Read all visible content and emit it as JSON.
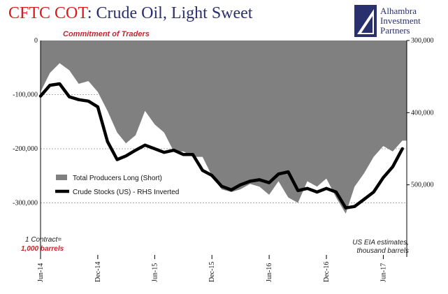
{
  "header": {
    "title_part1": "CFTC COT",
    "title_part2": ": Crude Oil, Light Sweet",
    "subtitle": "Commitment of Traders"
  },
  "logo": {
    "line1": "Alhambra",
    "line2": "Investment",
    "line3": "Partners"
  },
  "notes": {
    "contract": "1 Contract=",
    "barrels": "1,000 barrels",
    "eia_line1": "US EIA estimates,",
    "eia_line2": "thousand barrels"
  },
  "colors": {
    "area": "#808080",
    "line": "#000000",
    "grid": "#aaaaaa"
  },
  "chart_data": {
    "type": "line",
    "x_tick_labels": [
      "Jun-14",
      "Dec-14",
      "Jun-15",
      "Dec-15",
      "Jun-16",
      "Dec-16",
      "Jun-17"
    ],
    "y_left": {
      "ticks": [
        0,
        -100000,
        -200000,
        -300000
      ],
      "tick_labels": [
        "0",
        "-100,000",
        "-200,000",
        "-300,000"
      ],
      "range": [
        -400000,
        0
      ]
    },
    "y_right": {
      "ticks": [
        300000,
        400000,
        500000
      ],
      "tick_labels": [
        "300,000",
        "400,000",
        "500,000"
      ],
      "range": [
        300000,
        600000
      ],
      "inverted": true
    },
    "legend": [
      "Total Producers Long (Short)",
      "Crude Stocks (US) - RHS Inverted"
    ],
    "legend_position": "lower-left",
    "grid": true,
    "series": [
      {
        "name": "Total Producers Long (Short)",
        "kind": "area",
        "axis": "left",
        "x": [
          "2014-06",
          "2014-07",
          "2014-08",
          "2014-09",
          "2014-10",
          "2014-11",
          "2014-12",
          "2015-01",
          "2015-02",
          "2015-03",
          "2015-04",
          "2015-05",
          "2015-06",
          "2015-07",
          "2015-08",
          "2015-09",
          "2015-10",
          "2015-11",
          "2015-12",
          "2016-01",
          "2016-02",
          "2016-03",
          "2016-04",
          "2016-05",
          "2016-06",
          "2016-07",
          "2016-08",
          "2016-09",
          "2016-10",
          "2016-11",
          "2016-12",
          "2017-01",
          "2017-02",
          "2017-03",
          "2017-04",
          "2017-05",
          "2017-06",
          "2017-07",
          "2017-08"
        ],
        "values": [
          -95000,
          -60000,
          -42000,
          -55000,
          -80000,
          -75000,
          -95000,
          -130000,
          -170000,
          -190000,
          -175000,
          -130000,
          -155000,
          -170000,
          -205000,
          -205000,
          -215000,
          -215000,
          -250000,
          -275000,
          -280000,
          -275000,
          -265000,
          -270000,
          -285000,
          -260000,
          -290000,
          -300000,
          -260000,
          -270000,
          -255000,
          -290000,
          -320000,
          -270000,
          -245000,
          -215000,
          -195000,
          -205000,
          -185000
        ]
      },
      {
        "name": "Crude Stocks (US) - RHS Inverted",
        "kind": "line",
        "axis": "right",
        "x": [
          "2014-06",
          "2014-07",
          "2014-08",
          "2014-09",
          "2014-10",
          "2014-11",
          "2014-12",
          "2015-01",
          "2015-02",
          "2015-03",
          "2015-04",
          "2015-05",
          "2015-06",
          "2015-07",
          "2015-08",
          "2015-09",
          "2015-10",
          "2015-11",
          "2015-12",
          "2016-01",
          "2016-02",
          "2016-03",
          "2016-04",
          "2016-05",
          "2016-06",
          "2016-07",
          "2016-08",
          "2016-09",
          "2016-10",
          "2016-11",
          "2016-12",
          "2017-01",
          "2017-02",
          "2017-03",
          "2017-04",
          "2017-05",
          "2017-06",
          "2017-07",
          "2017-08"
        ],
        "values": [
          377000,
          362000,
          360000,
          378000,
          382000,
          384000,
          392000,
          440000,
          465000,
          460000,
          452000,
          445000,
          450000,
          455000,
          452000,
          458000,
          458000,
          480000,
          487000,
          502000,
          507000,
          500000,
          495000,
          493000,
          497000,
          485000,
          482000,
          508000,
          505000,
          510000,
          505000,
          510000,
          532000,
          530000,
          520000,
          510000,
          490000,
          475000,
          450000
        ]
      }
    ]
  }
}
